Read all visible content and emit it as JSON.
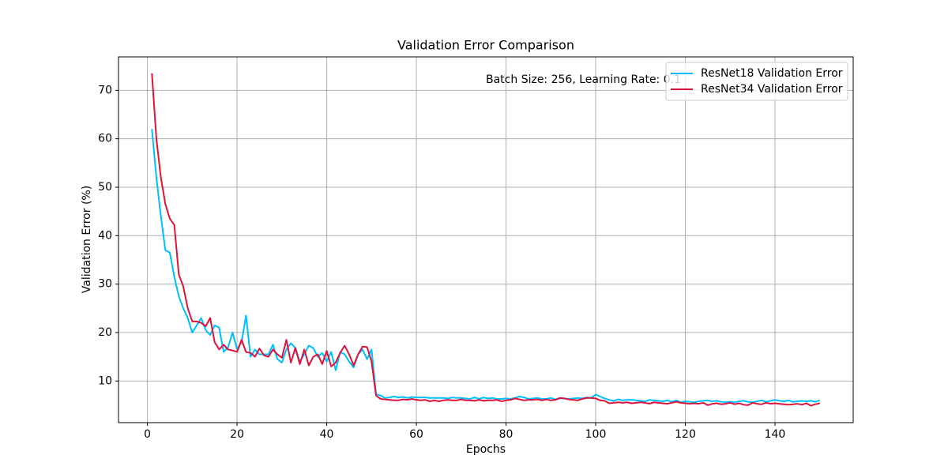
{
  "chart_data": {
    "type": "line",
    "title": "Validation Error Comparison",
    "xlabel": "Epochs",
    "ylabel": "Validation Error (%)",
    "annotation": "Batch Size: 256, Learning Rate: 0.1",
    "x": [
      1,
      2,
      3,
      4,
      5,
      6,
      7,
      8,
      9,
      10,
      11,
      12,
      13,
      14,
      15,
      16,
      17,
      18,
      19,
      20,
      21,
      22,
      23,
      24,
      25,
      26,
      27,
      28,
      29,
      30,
      31,
      32,
      33,
      34,
      35,
      36,
      37,
      38,
      39,
      40,
      41,
      42,
      43,
      44,
      45,
      46,
      47,
      48,
      49,
      50,
      51,
      52,
      53,
      54,
      55,
      56,
      57,
      58,
      59,
      60,
      61,
      62,
      63,
      64,
      65,
      66,
      67,
      68,
      69,
      70,
      71,
      72,
      73,
      74,
      75,
      76,
      77,
      78,
      79,
      80,
      81,
      82,
      83,
      84,
      85,
      86,
      87,
      88,
      89,
      90,
      91,
      92,
      93,
      94,
      95,
      96,
      97,
      98,
      99,
      100,
      101,
      102,
      103,
      104,
      105,
      106,
      107,
      108,
      109,
      110,
      111,
      112,
      113,
      114,
      115,
      116,
      117,
      118,
      119,
      120,
      121,
      122,
      123,
      124,
      125,
      126,
      127,
      128,
      129,
      130,
      131,
      132,
      133,
      134,
      135,
      136,
      137,
      138,
      139,
      140,
      141,
      142,
      143,
      144,
      145,
      146,
      147,
      148,
      149,
      150
    ],
    "series": [
      {
        "name": "ResNet18 Validation Error",
        "color": "#00bfff",
        "values": [
          62,
          52,
          44,
          37,
          36.5,
          31.5,
          27.5,
          25,
          23,
          20,
          21.5,
          23,
          20.5,
          19.5,
          21.5,
          21,
          16,
          17,
          20,
          16.5,
          18,
          23.5,
          15,
          16.5,
          15.5,
          15.5,
          15.5,
          17.5,
          14.5,
          13.8,
          16.5,
          17.8,
          16.8,
          14,
          15.5,
          17.3,
          16.8,
          15,
          15.8,
          14,
          16,
          12.2,
          16,
          15.5,
          14,
          12.8,
          15.5,
          16.5,
          14.5,
          16.5,
          7.3,
          7.0,
          6.5,
          6.6,
          6.8,
          6.6,
          6.7,
          6.5,
          6.7,
          6.6,
          6.6,
          6.6,
          6.5,
          6.5,
          6.5,
          6.5,
          6.4,
          6.6,
          6.5,
          6.5,
          6.4,
          6.3,
          6.6,
          6.3,
          6.6,
          6.4,
          6.5,
          6.3,
          6.3,
          6.4,
          6.3,
          6.5,
          6.8,
          6.6,
          6.3,
          6.4,
          6.5,
          6.3,
          6.3,
          6.5,
          6.2,
          6.4,
          6.4,
          6.3,
          6.4,
          6.5,
          6.4,
          6.6,
          6.5,
          7.2,
          6.8,
          6.4,
          6.1,
          5.9,
          6.2,
          6.0,
          6.1,
          6.1,
          6.0,
          5.9,
          5.8,
          6.1,
          6.0,
          5.9,
          5.8,
          6.0,
          5.7,
          6.0,
          5.6,
          5.8,
          5.7,
          5.6,
          5.8,
          5.9,
          6.0,
          5.8,
          5.9,
          5.7,
          5.6,
          5.7,
          5.6,
          5.8,
          5.9,
          5.7,
          5.6,
          5.8,
          6.0,
          5.7,
          5.9,
          6.1,
          5.9,
          5.8,
          6.0,
          5.7,
          5.8,
          5.9,
          5.8,
          5.9,
          5.7,
          6.0
        ]
      },
      {
        "name": "ResNet34 Validation Error",
        "color": "#dc143c",
        "values": [
          73.5,
          60,
          52,
          46.5,
          43.5,
          42.2,
          32,
          29.5,
          25,
          22.3,
          22.3,
          22,
          21.3,
          23,
          18,
          16.5,
          17.5,
          16.5,
          16.3,
          16,
          18.5,
          16,
          15.8,
          15,
          16.7,
          15.3,
          15,
          16.5,
          15.5,
          14.8,
          18.5,
          13.8,
          16.8,
          13.5,
          16.5,
          13.2,
          15,
          15.5,
          13.5,
          16.2,
          13,
          13.8,
          15.8,
          17.3,
          15.5,
          13.2,
          15.5,
          17.1,
          17,
          14,
          7.0,
          6.3,
          6.2,
          6.1,
          6.0,
          6.0,
          6.2,
          6.1,
          6.3,
          6.1,
          6.0,
          6.1,
          5.8,
          6.0,
          5.8,
          6.0,
          6.1,
          6.0,
          6.0,
          6.2,
          6.0,
          6.0,
          5.9,
          6.1,
          5.9,
          6.0,
          6.0,
          6.1,
          5.8,
          6.0,
          6.1,
          6.4,
          6.2,
          6.0,
          6.1,
          6.1,
          6.2,
          6.0,
          6.2,
          6.0,
          6.1,
          6.5,
          6.4,
          6.2,
          6.1,
          6.0,
          6.3,
          6.5,
          6.5,
          6.4,
          6.0,
          5.9,
          5.4,
          5.5,
          5.6,
          5.5,
          5.6,
          5.4,
          5.5,
          5.6,
          5.5,
          5.3,
          5.6,
          5.5,
          5.4,
          5.3,
          5.5,
          5.7,
          5.5,
          5.4,
          5.3,
          5.4,
          5.3,
          5.5,
          5.0,
          5.3,
          5.4,
          5.2,
          5.3,
          5.5,
          5.2,
          5.4,
          5.1,
          5.0,
          5.5,
          5.3,
          5.2,
          5.5,
          5.3,
          5.4,
          5.3,
          5.2,
          5.1,
          5.2,
          5.3,
          5.1,
          5.4,
          4.9,
          5.2,
          5.4
        ]
      }
    ],
    "xlim": [
      -6.45,
      157.45
    ],
    "xticks": [
      0,
      20,
      40,
      60,
      80,
      100,
      120,
      140
    ],
    "ylim": [
      1.4,
      76.9
    ],
    "yticks": [
      10,
      20,
      30,
      40,
      50,
      60,
      70
    ],
    "grid": true,
    "legend": "upper right"
  }
}
